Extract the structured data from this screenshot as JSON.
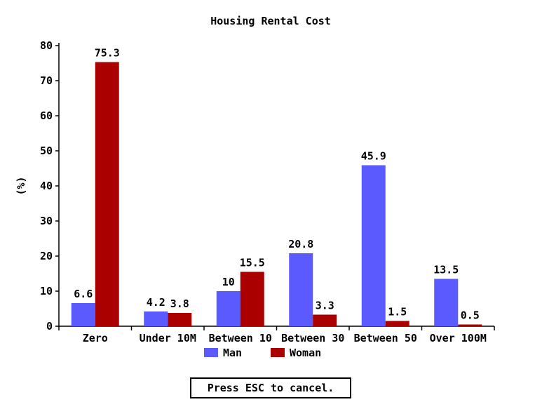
{
  "chart_data": {
    "type": "bar",
    "title": "Housing Rental Cost",
    "ylabel": "(%)",
    "xlabel": "",
    "ylim": [
      0,
      80
    ],
    "yticks": [
      0,
      10,
      20,
      30,
      40,
      50,
      60,
      70,
      80
    ],
    "grid": false,
    "legend_position": "bottom",
    "categories": [
      "Zero",
      "Under 10M",
      "Between 10",
      "Between 30",
      "Between 50",
      "Over 100M"
    ],
    "series": [
      {
        "name": "Man",
        "color": "#5a5aff",
        "values": [
          6.6,
          4.2,
          10,
          20.8,
          45.9,
          13.5
        ],
        "labels": [
          "6.6",
          "4.2",
          "10",
          "20.8",
          "45.9",
          "13.5"
        ]
      },
      {
        "name": "Woman",
        "color": "#aa0000",
        "values": [
          75.3,
          3.8,
          15.5,
          3.3,
          1.5,
          0.5
        ],
        "labels": [
          "75.3",
          "3.8",
          "15.5",
          "3.3",
          "1.5",
          "0.5"
        ]
      }
    ]
  },
  "footer": {
    "cancel_text": "Press ESC to cancel."
  }
}
